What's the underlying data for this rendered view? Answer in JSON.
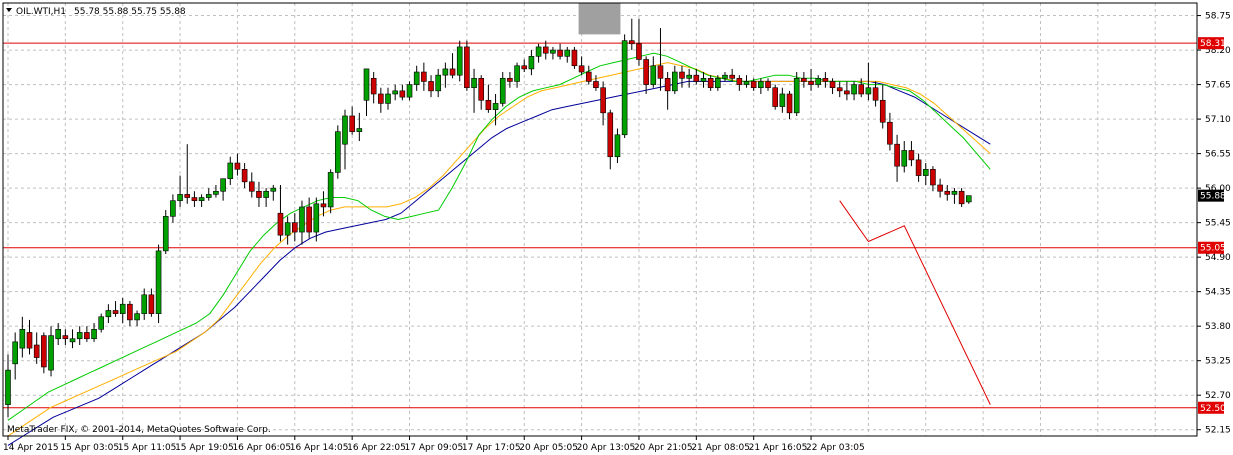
{
  "header": {
    "symbol": "OIL.WTI,H1",
    "ohlc": "55.78 55.88 55.75 55.88"
  },
  "footer": {
    "copyright": "MetaTrader FIX, © 2001-2014, MetaQuotes Software Corp."
  },
  "colors": {
    "background": "#ffffff",
    "grid": "#c0c0c0",
    "bull_candle": "#00a000",
    "bear_candle": "#cc0000",
    "candle_wick": "#000000",
    "ma_fast": "#00cc00",
    "ma_mid": "#ffb000",
    "ma_slow": "#000099",
    "level_line": "#e00000",
    "projection": "#e00000",
    "highlight_box": "#a0a0a0"
  },
  "chart_data": {
    "type": "candlestick",
    "symbol": "OIL.WTI",
    "timeframe": "H1",
    "ylim": [
      52.05,
      58.95
    ],
    "grid": true,
    "y_ticks": [
      "58.75",
      "58.20",
      "57.65",
      "57.10",
      "56.55",
      "56.00",
      "55.45",
      "54.90",
      "54.35",
      "53.80",
      "53.25",
      "52.70",
      "52.15"
    ],
    "x_ticks": [
      {
        "label": "14 Apr 2015",
        "bar": 0
      },
      {
        "label": "15 Apr 03:05",
        "bar": 8
      },
      {
        "label": "15 Apr 11:05",
        "bar": 16
      },
      {
        "label": "15 Apr 19:05",
        "bar": 24
      },
      {
        "label": "16 Apr 06:05",
        "bar": 32
      },
      {
        "label": "16 Apr 14:05",
        "bar": 40
      },
      {
        "label": "16 Apr 22:05",
        "bar": 48
      },
      {
        "label": "17 Apr 09:05",
        "bar": 56
      },
      {
        "label": "17 Apr 17:05",
        "bar": 64
      },
      {
        "label": "20 Apr 05:05",
        "bar": 72
      },
      {
        "label": "20 Apr 13:05",
        "bar": 80
      },
      {
        "label": "20 Apr 21:05",
        "bar": 88
      },
      {
        "label": "21 Apr 08:05",
        "bar": 96
      },
      {
        "label": "21 Apr 16:05",
        "bar": 104
      },
      {
        "label": "22 Apr 03:05",
        "bar": 112
      }
    ],
    "price_levels": [
      {
        "label": "58.31",
        "value": 58.31
      },
      {
        "label": "55.05",
        "value": 55.05
      },
      {
        "label": "52.50",
        "value": 52.5
      }
    ],
    "current_price": {
      "label": "55.88",
      "value": 55.88
    },
    "candles": [
      {
        "o": 52.55,
        "h": 53.35,
        "l": 52.35,
        "c": 53.1
      },
      {
        "o": 53.2,
        "h": 53.7,
        "l": 52.95,
        "c": 53.55
      },
      {
        "o": 53.45,
        "h": 53.95,
        "l": 53.3,
        "c": 53.75
      },
      {
        "o": 53.7,
        "h": 53.9,
        "l": 53.35,
        "c": 53.45
      },
      {
        "o": 53.5,
        "h": 53.7,
        "l": 53.2,
        "c": 53.3
      },
      {
        "o": 53.65,
        "h": 53.7,
        "l": 53.05,
        "c": 53.15
      },
      {
        "o": 53.1,
        "h": 53.8,
        "l": 53.0,
        "c": 53.65
      },
      {
        "o": 53.6,
        "h": 53.85,
        "l": 53.5,
        "c": 53.75
      },
      {
        "o": 53.65,
        "h": 53.75,
        "l": 53.5,
        "c": 53.6
      },
      {
        "o": 53.55,
        "h": 53.75,
        "l": 53.45,
        "c": 53.6
      },
      {
        "o": 53.6,
        "h": 53.8,
        "l": 53.5,
        "c": 53.7
      },
      {
        "o": 53.7,
        "h": 53.8,
        "l": 53.55,
        "c": 53.6
      },
      {
        "o": 53.6,
        "h": 53.85,
        "l": 53.55,
        "c": 53.75
      },
      {
        "o": 53.75,
        "h": 54.0,
        "l": 53.7,
        "c": 53.95
      },
      {
        "o": 53.95,
        "h": 54.15,
        "l": 53.85,
        "c": 54.05
      },
      {
        "o": 54.05,
        "h": 54.2,
        "l": 53.95,
        "c": 54.0
      },
      {
        "o": 54.0,
        "h": 54.25,
        "l": 53.85,
        "c": 54.15
      },
      {
        "o": 54.15,
        "h": 54.2,
        "l": 53.8,
        "c": 53.9
      },
      {
        "o": 53.9,
        "h": 54.05,
        "l": 53.8,
        "c": 54.0
      },
      {
        "o": 54.0,
        "h": 54.4,
        "l": 53.9,
        "c": 54.3
      },
      {
        "o": 54.3,
        "h": 54.4,
        "l": 53.95,
        "c": 54.0
      },
      {
        "o": 54.0,
        "h": 55.1,
        "l": 53.85,
        "c": 55.0
      },
      {
        "o": 55.0,
        "h": 55.65,
        "l": 54.95,
        "c": 55.55
      },
      {
        "o": 55.55,
        "h": 55.9,
        "l": 55.45,
        "c": 55.8
      },
      {
        "o": 55.8,
        "h": 56.2,
        "l": 55.7,
        "c": 55.9
      },
      {
        "o": 55.9,
        "h": 56.7,
        "l": 55.75,
        "c": 55.85
      },
      {
        "o": 55.85,
        "h": 55.95,
        "l": 55.7,
        "c": 55.8
      },
      {
        "o": 55.8,
        "h": 55.9,
        "l": 55.7,
        "c": 55.85
      },
      {
        "o": 55.85,
        "h": 56.0,
        "l": 55.8,
        "c": 55.9
      },
      {
        "o": 55.9,
        "h": 56.05,
        "l": 55.85,
        "c": 55.95
      },
      {
        "o": 55.95,
        "h": 56.1,
        "l": 55.8,
        "c": 56.15
      },
      {
        "o": 56.15,
        "h": 56.5,
        "l": 56.05,
        "c": 56.4
      },
      {
        "o": 56.4,
        "h": 56.55,
        "l": 56.2,
        "c": 56.3
      },
      {
        "o": 56.3,
        "h": 56.4,
        "l": 56.0,
        "c": 56.1
      },
      {
        "o": 56.1,
        "h": 56.25,
        "l": 55.85,
        "c": 55.95
      },
      {
        "o": 55.95,
        "h": 56.1,
        "l": 55.7,
        "c": 55.85
      },
      {
        "o": 55.85,
        "h": 56.0,
        "l": 55.7,
        "c": 55.95
      },
      {
        "o": 55.95,
        "h": 56.05,
        "l": 55.8,
        "c": 56.0
      },
      {
        "o": 55.6,
        "h": 56.05,
        "l": 55.15,
        "c": 55.25
      },
      {
        "o": 55.25,
        "h": 55.55,
        "l": 55.1,
        "c": 55.45
      },
      {
        "o": 55.45,
        "h": 55.6,
        "l": 55.15,
        "c": 55.3
      },
      {
        "o": 55.3,
        "h": 55.8,
        "l": 55.1,
        "c": 55.7
      },
      {
        "o": 55.7,
        "h": 55.85,
        "l": 55.2,
        "c": 55.3
      },
      {
        "o": 55.3,
        "h": 55.85,
        "l": 55.15,
        "c": 55.75
      },
      {
        "o": 55.75,
        "h": 55.95,
        "l": 55.55,
        "c": 55.7
      },
      {
        "o": 55.7,
        "h": 56.3,
        "l": 55.6,
        "c": 56.25
      },
      {
        "o": 56.25,
        "h": 57.0,
        "l": 56.15,
        "c": 56.9
      },
      {
        "o": 56.7,
        "h": 57.25,
        "l": 56.3,
        "c": 57.15
      },
      {
        "o": 57.15,
        "h": 57.3,
        "l": 56.85,
        "c": 56.9
      },
      {
        "o": 56.9,
        "h": 57.2,
        "l": 56.75,
        "c": 56.95
      },
      {
        "o": 57.4,
        "h": 57.9,
        "l": 57.15,
        "c": 57.9
      },
      {
        "o": 57.75,
        "h": 57.85,
        "l": 57.35,
        "c": 57.5
      },
      {
        "o": 57.5,
        "h": 57.6,
        "l": 57.2,
        "c": 57.35
      },
      {
        "o": 57.35,
        "h": 57.6,
        "l": 57.25,
        "c": 57.5
      },
      {
        "o": 57.5,
        "h": 57.65,
        "l": 57.4,
        "c": 57.55
      },
      {
        "o": 57.55,
        "h": 57.65,
        "l": 57.4,
        "c": 57.45
      },
      {
        "o": 57.45,
        "h": 57.7,
        "l": 57.4,
        "c": 57.65
      },
      {
        "o": 57.65,
        "h": 57.95,
        "l": 57.55,
        "c": 57.85
      },
      {
        "o": 57.85,
        "h": 58.0,
        "l": 57.55,
        "c": 57.7
      },
      {
        "o": 57.7,
        "h": 57.8,
        "l": 57.45,
        "c": 57.55
      },
      {
        "o": 57.55,
        "h": 57.9,
        "l": 57.45,
        "c": 57.8
      },
      {
        "o": 57.8,
        "h": 58.0,
        "l": 57.6,
        "c": 57.9
      },
      {
        "o": 57.9,
        "h": 58.15,
        "l": 57.75,
        "c": 57.8
      },
      {
        "o": 57.8,
        "h": 58.35,
        "l": 57.7,
        "c": 58.25
      },
      {
        "o": 58.25,
        "h": 58.35,
        "l": 57.55,
        "c": 57.6
      },
      {
        "o": 57.6,
        "h": 57.9,
        "l": 57.2,
        "c": 57.75
      },
      {
        "o": 57.75,
        "h": 57.8,
        "l": 57.25,
        "c": 57.4
      },
      {
        "o": 57.4,
        "h": 57.65,
        "l": 57.2,
        "c": 57.25
      },
      {
        "o": 57.25,
        "h": 57.5,
        "l": 57.0,
        "c": 57.35
      },
      {
        "o": 57.35,
        "h": 57.85,
        "l": 57.3,
        "c": 57.75
      },
      {
        "o": 57.75,
        "h": 57.85,
        "l": 57.6,
        "c": 57.7
      },
      {
        "o": 57.7,
        "h": 58.0,
        "l": 57.6,
        "c": 57.95
      },
      {
        "o": 57.95,
        "h": 58.05,
        "l": 57.85,
        "c": 57.9
      },
      {
        "o": 57.9,
        "h": 58.2,
        "l": 57.8,
        "c": 58.1
      },
      {
        "o": 58.1,
        "h": 58.3,
        "l": 58.0,
        "c": 58.25
      },
      {
        "o": 58.25,
        "h": 58.35,
        "l": 58.05,
        "c": 58.15
      },
      {
        "o": 58.15,
        "h": 58.25,
        "l": 58.05,
        "c": 58.2
      },
      {
        "o": 58.2,
        "h": 58.3,
        "l": 58.05,
        "c": 58.1
      },
      {
        "o": 58.1,
        "h": 58.25,
        "l": 58.0,
        "c": 58.2
      },
      {
        "o": 58.2,
        "h": 58.25,
        "l": 57.9,
        "c": 57.95
      },
      {
        "o": 57.95,
        "h": 58.1,
        "l": 57.8,
        "c": 57.85
      },
      {
        "o": 57.85,
        "h": 57.95,
        "l": 57.65,
        "c": 57.7
      },
      {
        "o": 57.7,
        "h": 57.8,
        "l": 57.55,
        "c": 57.6
      },
      {
        "o": 57.6,
        "h": 57.7,
        "l": 57.0,
        "c": 57.2
      },
      {
        "o": 57.2,
        "h": 57.25,
        "l": 56.3,
        "c": 56.5
      },
      {
        "o": 56.5,
        "h": 56.95,
        "l": 56.4,
        "c": 56.85
      },
      {
        "o": 56.85,
        "h": 58.45,
        "l": 56.8,
        "c": 58.35
      },
      {
        "o": 58.35,
        "h": 58.7,
        "l": 58.2,
        "c": 58.3
      },
      {
        "o": 58.3,
        "h": 58.7,
        "l": 57.95,
        "c": 58.05
      },
      {
        "o": 58.05,
        "h": 58.1,
        "l": 57.5,
        "c": 57.65
      },
      {
        "o": 57.65,
        "h": 58.1,
        "l": 57.6,
        "c": 57.95
      },
      {
        "o": 57.95,
        "h": 58.55,
        "l": 57.55,
        "c": 57.75
      },
      {
        "o": 57.75,
        "h": 57.85,
        "l": 57.25,
        "c": 57.55
      },
      {
        "o": 57.55,
        "h": 57.95,
        "l": 57.5,
        "c": 57.85
      },
      {
        "o": 57.85,
        "h": 57.95,
        "l": 57.6,
        "c": 57.75
      },
      {
        "o": 57.75,
        "h": 57.9,
        "l": 57.6,
        "c": 57.8
      },
      {
        "o": 57.8,
        "h": 57.9,
        "l": 57.65,
        "c": 57.7
      },
      {
        "o": 57.7,
        "h": 57.85,
        "l": 57.6,
        "c": 57.75
      },
      {
        "o": 57.75,
        "h": 57.8,
        "l": 57.55,
        "c": 57.6
      },
      {
        "o": 57.6,
        "h": 57.8,
        "l": 57.55,
        "c": 57.75
      },
      {
        "o": 57.75,
        "h": 57.85,
        "l": 57.7,
        "c": 57.8
      },
      {
        "o": 57.8,
        "h": 57.9,
        "l": 57.7,
        "c": 57.75
      },
      {
        "o": 57.75,
        "h": 57.8,
        "l": 57.55,
        "c": 57.65
      },
      {
        "o": 57.65,
        "h": 57.8,
        "l": 57.6,
        "c": 57.7
      },
      {
        "o": 57.7,
        "h": 57.75,
        "l": 57.55,
        "c": 57.6
      },
      {
        "o": 57.6,
        "h": 57.75,
        "l": 57.5,
        "c": 57.7
      },
      {
        "o": 57.7,
        "h": 57.75,
        "l": 57.55,
        "c": 57.6
      },
      {
        "o": 57.6,
        "h": 57.65,
        "l": 57.25,
        "c": 57.3
      },
      {
        "o": 57.3,
        "h": 57.6,
        "l": 57.2,
        "c": 57.5
      },
      {
        "o": 57.5,
        "h": 57.55,
        "l": 57.1,
        "c": 57.2
      },
      {
        "o": 57.2,
        "h": 57.85,
        "l": 57.15,
        "c": 57.75
      },
      {
        "o": 57.75,
        "h": 57.85,
        "l": 57.6,
        "c": 57.7
      },
      {
        "o": 57.7,
        "h": 57.9,
        "l": 57.55,
        "c": 57.65
      },
      {
        "o": 57.65,
        "h": 57.8,
        "l": 57.6,
        "c": 57.75
      },
      {
        "o": 57.75,
        "h": 57.85,
        "l": 57.6,
        "c": 57.7
      },
      {
        "o": 57.7,
        "h": 57.75,
        "l": 57.5,
        "c": 57.6
      },
      {
        "o": 57.6,
        "h": 57.7,
        "l": 57.45,
        "c": 57.55
      },
      {
        "o": 57.55,
        "h": 57.7,
        "l": 57.4,
        "c": 57.5
      },
      {
        "o": 57.5,
        "h": 57.7,
        "l": 57.4,
        "c": 57.65
      },
      {
        "o": 57.65,
        "h": 57.75,
        "l": 57.45,
        "c": 57.5
      },
      {
        "o": 57.5,
        "h": 58.0,
        "l": 57.4,
        "c": 57.6
      },
      {
        "o": 57.6,
        "h": 57.7,
        "l": 57.3,
        "c": 57.4
      },
      {
        "o": 57.4,
        "h": 57.65,
        "l": 56.95,
        "c": 57.05
      },
      {
        "o": 57.05,
        "h": 57.2,
        "l": 56.6,
        "c": 56.7
      },
      {
        "o": 56.7,
        "h": 56.85,
        "l": 56.1,
        "c": 56.35
      },
      {
        "o": 56.35,
        "h": 56.75,
        "l": 56.25,
        "c": 56.6
      },
      {
        "o": 56.6,
        "h": 56.75,
        "l": 56.35,
        "c": 56.45
      },
      {
        "o": 56.45,
        "h": 56.55,
        "l": 56.1,
        "c": 56.2
      },
      {
        "o": 56.2,
        "h": 56.4,
        "l": 56.05,
        "c": 56.3
      },
      {
        "o": 56.3,
        "h": 56.35,
        "l": 55.95,
        "c": 56.05
      },
      {
        "o": 56.05,
        "h": 56.15,
        "l": 55.85,
        "c": 55.95
      },
      {
        "o": 55.95,
        "h": 56.05,
        "l": 55.8,
        "c": 55.9
      },
      {
        "o": 55.9,
        "h": 56.0,
        "l": 55.75,
        "c": 55.95
      },
      {
        "o": 55.95,
        "h": 56.0,
        "l": 55.7,
        "c": 55.75
      },
      {
        "o": 55.78,
        "h": 55.88,
        "l": 55.75,
        "c": 55.88
      }
    ],
    "ma_fast": [
      52.3,
      52.45,
      52.6,
      52.75,
      52.85,
      52.95,
      53.05,
      53.15,
      53.25,
      53.35,
      53.45,
      53.55,
      53.65,
      53.75,
      53.85,
      54.0,
      54.3,
      54.65,
      55.0,
      55.25,
      55.45,
      55.6,
      55.7,
      55.8,
      55.85,
      55.85,
      55.8,
      55.65,
      55.55,
      55.5,
      55.55,
      55.6,
      55.65,
      56.0,
      56.4,
      56.85,
      57.1,
      57.3,
      57.45,
      57.55,
      57.6,
      57.65,
      57.75,
      57.85,
      57.95,
      58.0,
      58.05,
      58.1,
      58.15,
      58.1,
      58.0,
      57.9,
      57.8,
      57.75,
      57.7,
      57.7,
      57.75,
      57.8,
      57.8,
      57.75,
      57.75,
      57.7,
      57.7,
      57.7,
      57.65,
      57.65,
      57.6,
      57.55,
      57.4,
      57.2,
      57.0,
      56.8,
      56.55,
      56.3
    ],
    "ma_mid": [
      52.05,
      52.2,
      52.35,
      52.5,
      52.6,
      52.7,
      52.8,
      52.9,
      53.0,
      53.1,
      53.2,
      53.3,
      53.4,
      53.55,
      53.7,
      53.9,
      54.2,
      54.5,
      54.8,
      55.05,
      55.25,
      55.4,
      55.55,
      55.65,
      55.7,
      55.7,
      55.7,
      55.7,
      55.75,
      55.85,
      56.0,
      56.2,
      56.45,
      56.7,
      56.95,
      57.15,
      57.3,
      57.45,
      57.55,
      57.6,
      57.65,
      57.7,
      57.75,
      57.8,
      57.85,
      57.9,
      57.95,
      58.0,
      57.95,
      57.9,
      57.8,
      57.75,
      57.7,
      57.7,
      57.7,
      57.7,
      57.7,
      57.7,
      57.7,
      57.7,
      57.7,
      57.7,
      57.7,
      57.65,
      57.6,
      57.5,
      57.35,
      57.15,
      56.95,
      56.75,
      56.55
    ],
    "ma_slow": [
      51.9,
      52.05,
      52.2,
      52.35,
      52.45,
      52.55,
      52.65,
      52.8,
      52.95,
      53.1,
      53.25,
      53.4,
      53.55,
      53.7,
      53.9,
      54.1,
      54.35,
      54.6,
      54.85,
      55.05,
      55.2,
      55.3,
      55.35,
      55.4,
      55.45,
      55.5,
      55.6,
      55.8,
      56.0,
      56.2,
      56.4,
      56.6,
      56.8,
      56.95,
      57.05,
      57.15,
      57.25,
      57.3,
      57.35,
      57.4,
      57.45,
      57.5,
      57.55,
      57.6,
      57.65,
      57.7,
      57.7,
      57.7,
      57.7,
      57.7,
      57.7,
      57.7,
      57.7,
      57.7,
      57.7,
      57.7,
      57.7,
      57.7,
      57.65,
      57.55,
      57.45,
      57.3,
      57.15,
      57.0,
      56.85,
      56.7
    ],
    "projection": [
      {
        "bar": 116,
        "value": 55.8
      },
      {
        "bar": 120,
        "value": 55.15
      },
      {
        "bar": 125,
        "value": 55.4
      },
      {
        "bar": 137,
        "value": 52.55
      }
    ],
    "highlight_zone": {
      "bar_start": 80,
      "bar_end": 85,
      "y_low": 58.45,
      "y_high": 58.95
    }
  }
}
